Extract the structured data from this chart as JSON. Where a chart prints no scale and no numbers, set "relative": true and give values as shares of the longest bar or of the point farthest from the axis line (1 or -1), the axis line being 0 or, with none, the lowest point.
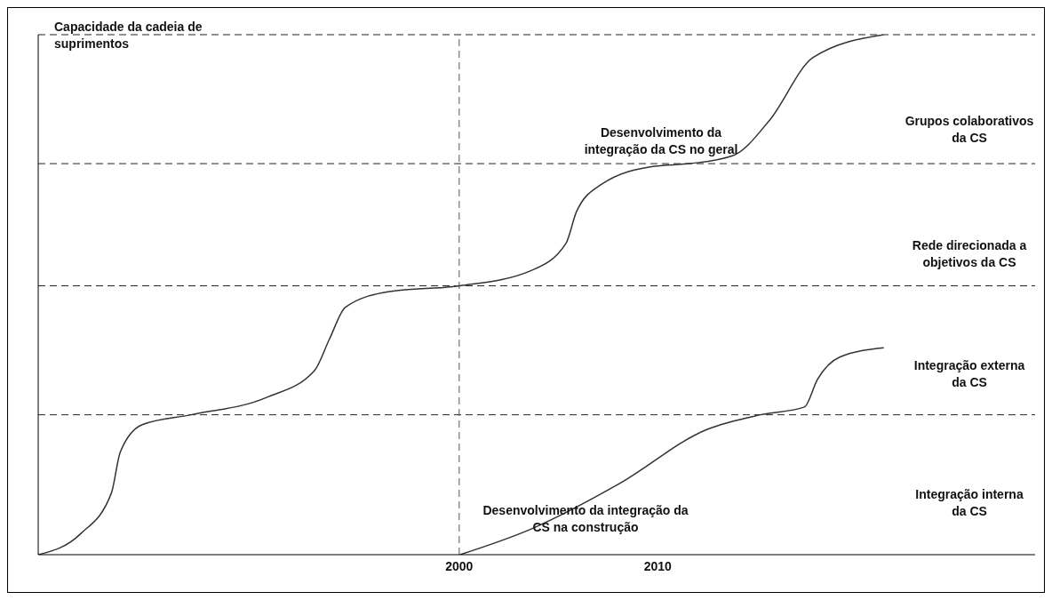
{
  "chart_data": {
    "type": "line",
    "relative": true,
    "ylabel": "Capacidade da cadeia de suprimentos",
    "xlim": [
      1978.8,
      2029
    ],
    "xticks": [
      2000,
      2010
    ],
    "grid": false,
    "marker": "none",
    "line_style": "solid",
    "series": [
      {
        "color": "#333333",
        "x": [
          1978.8,
          1980.93,
          1982.49,
          1982.93,
          1984.04,
          1986.49,
          1990.27,
          1992.71,
          1993.47,
          1994.27,
          1996.49,
          2000.04,
          2003.6,
          2005.38,
          2005.91,
          2007.16,
          2009.82,
          2011.6,
          2013.82,
          2015.6,
          2017.82,
          2021.38
        ],
        "values": [
          0,
          0.04,
          0.119,
          0.197,
          0.25,
          0.269,
          0.302,
          0.354,
          0.415,
          0.476,
          0.506,
          0.517,
          0.546,
          0.599,
          0.66,
          0.712,
          0.747,
          0.752,
          0.768,
          0.834,
          0.956,
          1
        ]
      },
      {
        "color": "#333333",
        "x": [
          2000.04,
          2003.6,
          2008.04,
          2012.49,
          2015.16,
          2017.38,
          2018.04,
          2019.16,
          2021.38
        ],
        "values": [
          0,
          0.049,
          0.136,
          0.241,
          0.269,
          0.284,
          0.337,
          0.38,
          0.398
        ]
      }
    ],
    "ref_lines": [
      {
        "axis": "y",
        "value": 0.269,
        "line_style": "dashed"
      },
      {
        "axis": "y",
        "value": 0.517,
        "line_style": "dashed"
      },
      {
        "axis": "y",
        "value": 0.752,
        "line_style": "dashed"
      },
      {
        "axis": "y",
        "value": 1,
        "line_style": "dashed"
      },
      {
        "axis": "x",
        "value": 2000,
        "line_style": "dashed"
      }
    ],
    "annotations": [
      "Grupos colaborativos da CS",
      "Rede direcionada a objetivos da CS",
      "Integração externa da CS",
      "Integração interna da CS",
      "Desenvolvimento da integração da CS no geral",
      "Desenvolvimento da integração da CS na construção"
    ]
  }
}
